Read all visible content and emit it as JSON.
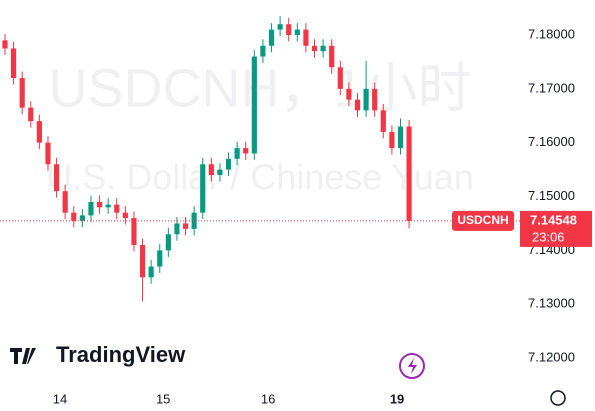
{
  "chart_data": {
    "type": "candlestick",
    "symbol": "USDCNH",
    "watermark_title": "USDCNH，1小时",
    "watermark_subtitle": "U.S. Dollar / Chinese Yuan",
    "logo": "TradingView",
    "up_color": "#089981",
    "down_color": "#f23645",
    "ohlc": [
      [
        7.179,
        7.1802,
        7.1763,
        7.1775
      ],
      [
        7.1775,
        7.1787,
        7.1708,
        7.172
      ],
      [
        7.172,
        7.1732,
        7.1653,
        7.1665
      ],
      [
        7.1665,
        7.1677,
        7.1628,
        7.164
      ],
      [
        7.164,
        7.1652,
        7.1588,
        7.16
      ],
      [
        7.16,
        7.1612,
        7.1548,
        7.156
      ],
      [
        7.156,
        7.1572,
        7.1498,
        7.151
      ],
      [
        7.151,
        7.1522,
        7.1458,
        7.147
      ],
      [
        7.147,
        7.1482,
        7.1443,
        7.1455
      ],
      [
        7.1455,
        7.1477,
        7.1443,
        7.1465
      ],
      [
        7.1465,
        7.1502,
        7.1453,
        7.149
      ],
      [
        7.149,
        7.1502,
        7.1468,
        7.148
      ],
      [
        7.148,
        7.1497,
        7.1468,
        7.1485
      ],
      [
        7.1485,
        7.1497,
        7.1458,
        7.147
      ],
      [
        7.147,
        7.1482,
        7.1448,
        7.146
      ],
      [
        7.146,
        7.1472,
        7.1398,
        7.141
      ],
      [
        7.141,
        7.1422,
        7.1305,
        7.135
      ],
      [
        7.135,
        7.1382,
        7.1338,
        7.137
      ],
      [
        7.137,
        7.1412,
        7.1358,
        7.14
      ],
      [
        7.14,
        7.1442,
        7.1388,
        7.143
      ],
      [
        7.143,
        7.1462,
        7.1418,
        7.145
      ],
      [
        7.145,
        7.1462,
        7.1428,
        7.144
      ],
      [
        7.144,
        7.1482,
        7.1428,
        7.147
      ],
      [
        7.147,
        7.1572,
        7.1458,
        7.156
      ],
      [
        7.156,
        7.1572,
        7.1528,
        7.154
      ],
      [
        7.154,
        7.1562,
        7.1528,
        7.155
      ],
      [
        7.155,
        7.1582,
        7.1538,
        7.157
      ],
      [
        7.157,
        7.1602,
        7.1558,
        7.159
      ],
      [
        7.159,
        7.1602,
        7.1568,
        7.158
      ],
      [
        7.158,
        7.1772,
        7.1568,
        7.176
      ],
      [
        7.176,
        7.1792,
        7.1748,
        7.178
      ],
      [
        7.178,
        7.1822,
        7.1768,
        7.181
      ],
      [
        7.181,
        7.1835,
        7.1798,
        7.182
      ],
      [
        7.182,
        7.1832,
        7.1788,
        7.18
      ],
      [
        7.18,
        7.1822,
        7.1788,
        7.181
      ],
      [
        7.181,
        7.1822,
        7.1768,
        7.178
      ],
      [
        7.178,
        7.1792,
        7.1758,
        7.177
      ],
      [
        7.177,
        7.1792,
        7.1758,
        7.178
      ],
      [
        7.178,
        7.1792,
        7.1728,
        7.174
      ],
      [
        7.174,
        7.1752,
        7.1688,
        7.17
      ],
      [
        7.17,
        7.1712,
        7.1668,
        7.168
      ],
      [
        7.168,
        7.1692,
        7.1648,
        7.166
      ],
      [
        7.166,
        7.1752,
        7.1648,
        7.17
      ],
      [
        7.17,
        7.1712,
        7.1648,
        7.166
      ],
      [
        7.166,
        7.1672,
        7.1608,
        7.162
      ],
      [
        7.162,
        7.1632,
        7.1578,
        7.159
      ],
      [
        7.159,
        7.1645,
        7.1578,
        7.163
      ],
      [
        7.163,
        7.1642,
        7.1441,
        7.14548
      ]
    ],
    "current_price": 7.14548,
    "countdown": "23:06",
    "ylim": [
      7.115,
      7.1865
    ],
    "yticks": [
      {
        "value": 7.12,
        "label": "7.12000"
      },
      {
        "value": 7.13,
        "label": "7.13000"
      },
      {
        "value": 7.14,
        "label": "7.14000"
      },
      {
        "value": 7.15,
        "label": "7.15000"
      },
      {
        "value": 7.16,
        "label": "7.16000"
      },
      {
        "value": 7.17,
        "label": "7.17000"
      },
      {
        "value": 7.18,
        "label": "7.18000"
      }
    ],
    "xlim": [
      -0.58,
      59.9
    ],
    "xticks": [
      {
        "value": 6.4,
        "label": "14"
      },
      {
        "value": 18.4,
        "label": "15"
      },
      {
        "value": 30.6,
        "label": "16"
      },
      {
        "value": 45.6,
        "label": "19"
      }
    ]
  }
}
